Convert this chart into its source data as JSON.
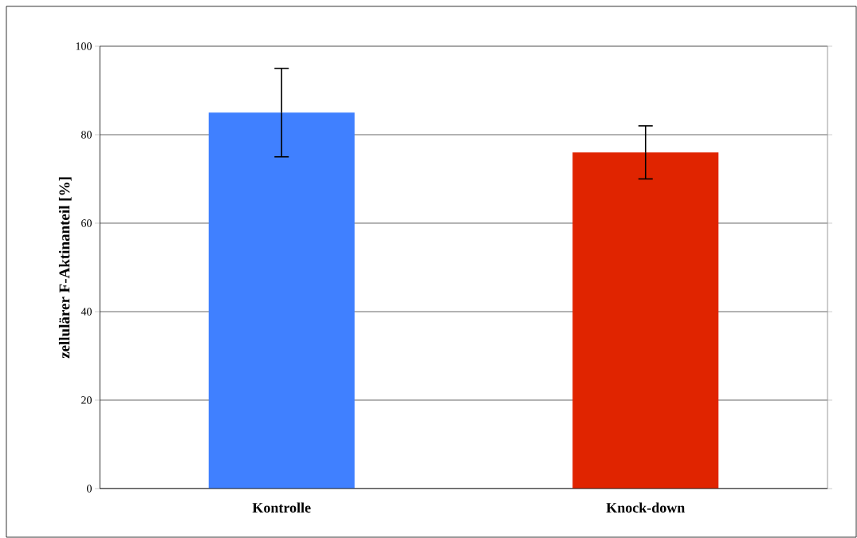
{
  "chart_data": {
    "type": "bar",
    "ylabel": "zellulärer F-Aktinanteil [%]",
    "categories": [
      "Kontrolle",
      "Knock-down"
    ],
    "values": [
      85,
      76
    ],
    "colors": [
      "#4080ff",
      "#e02400"
    ],
    "errors": [
      10,
      6
    ],
    "ylim": [
      0,
      100
    ],
    "yticks": [
      0,
      20,
      40,
      60,
      80,
      100
    ],
    "grid": "y"
  }
}
